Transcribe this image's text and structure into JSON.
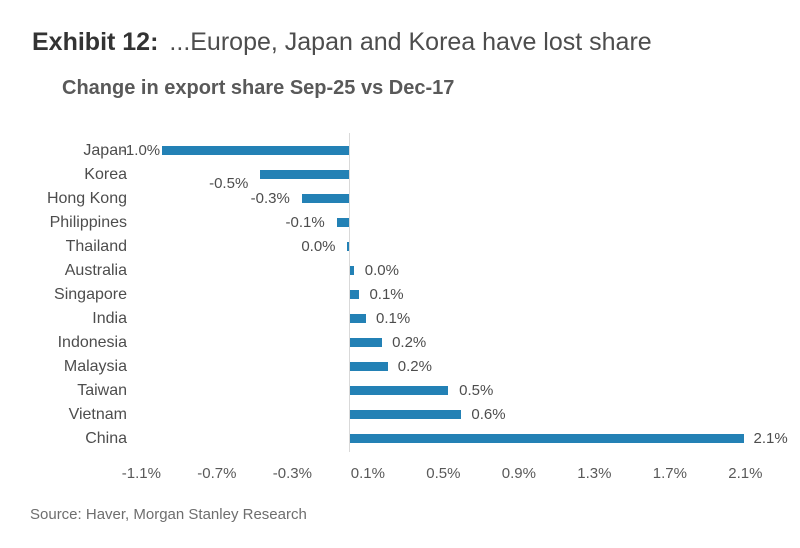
{
  "exhibit": {
    "label": "Exhibit 12:",
    "title": "...Europe, Japan and Korea have lost share"
  },
  "chart_data": {
    "type": "bar",
    "orientation": "horizontal",
    "title": "Change in export share Sep-25 vs Dec-17",
    "categories": [
      "Japan",
      "Korea",
      "Hong Kong",
      "Philippines",
      "Thailand",
      "Australia",
      "Singapore",
      "India",
      "Indonesia",
      "Malaysia",
      "Taiwan",
      "Vietnam",
      "China"
    ],
    "values": [
      -1.0,
      -0.5,
      -0.3,
      -0.1,
      0.0,
      0.0,
      0.1,
      0.1,
      0.2,
      0.2,
      0.5,
      0.6,
      2.1
    ],
    "value_labels": [
      "-1.0%",
      "-0.5%",
      "-0.3%",
      "-0.1%",
      "0.0%",
      "0.0%",
      "0.1%",
      "0.1%",
      "0.2%",
      "0.2%",
      "0.5%",
      "0.6%",
      "2.1%"
    ],
    "render_values": [
      -0.99,
      -0.47,
      -0.25,
      -0.065,
      -0.013,
      0.02,
      0.05,
      0.085,
      0.17,
      0.2,
      0.52,
      0.59,
      2.09
    ],
    "label_gaps": [
      2,
      12,
      12,
      12,
      11,
      11,
      10,
      10,
      10,
      10,
      11,
      10,
      9
    ],
    "label_dy": [
      0,
      9,
      0,
      0,
      0,
      0,
      0,
      0,
      0,
      0,
      0,
      0,
      0
    ],
    "x_tick_labels": [
      "-1.1%",
      "-0.7%",
      "-0.3%",
      "0.1%",
      "0.5%",
      "0.9%",
      "1.3%",
      "1.7%",
      "2.1%"
    ],
    "x_tick_values": [
      -1.1,
      -0.7,
      -0.3,
      0.1,
      0.5,
      0.9,
      1.3,
      1.7,
      2.1
    ],
    "xlim": [
      -1.3,
      2.35
    ],
    "bar_color": "#2381b5",
    "axis_line_color": "#d9d9d9",
    "grid": false,
    "legend": false
  },
  "footer": {
    "source": "Source: Haver, Morgan Stanley Research"
  }
}
